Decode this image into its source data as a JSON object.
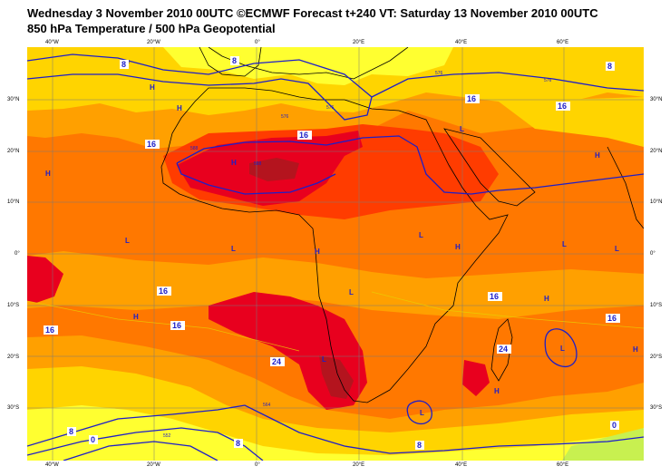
{
  "header": {
    "title_line1": "Wednesday 3 November 2010 00UTC ©ECMWF Forecast t+240 VT: Saturday 13 November 2010 00UTC",
    "title_line2": "850 hPa Temperature / 500 hPa Geopotential"
  },
  "axes": {
    "top_lon": [
      "40°W",
      "20°W",
      "0°",
      "20°E",
      "40°E",
      "60°E"
    ],
    "bottom_lon": [
      "40°W",
      "20°W",
      "0°",
      "20°E",
      "40°E",
      "60°E"
    ],
    "left_lat": [
      "30°N",
      "20°N",
      "10°N",
      "0°",
      "10°S",
      "20°S",
      "30°S"
    ],
    "right_lat": [
      "30°N",
      "20°N",
      "10°N",
      "0°",
      "10°S",
      "20°S",
      "30°S"
    ]
  },
  "colors": {
    "temp_cool": "#f0f0a8",
    "temp_0_8": "#ffff30",
    "temp_8_12": "#ffd400",
    "temp_12_16": "#ffa000",
    "temp_16_20": "#ff7800",
    "temp_20_24": "#ff3c00",
    "temp_24_28": "#e8001e",
    "temp_28_plus": "#b4141e",
    "cold_green": "#c8f050",
    "geopotential_contour": "#1e1ec8",
    "coastline": "#000000"
  },
  "geopotential_contour_labels": [
    "576",
    "576",
    "576",
    "576",
    "576",
    "588",
    "588",
    "564",
    "552"
  ],
  "temperature_labels": [
    "8",
    "8",
    "8",
    "8",
    "8",
    "8",
    "16",
    "16",
    "16",
    "16",
    "16",
    "16",
    "16",
    "16",
    "16",
    "24",
    "24",
    "0",
    "0"
  ],
  "pressure_centres": [
    "H",
    "H",
    "H",
    "H",
    "H",
    "H",
    "H",
    "H",
    "H",
    "H",
    "H",
    "L",
    "L",
    "L",
    "L",
    "L",
    "L",
    "L",
    "L",
    "L",
    "L"
  ]
}
